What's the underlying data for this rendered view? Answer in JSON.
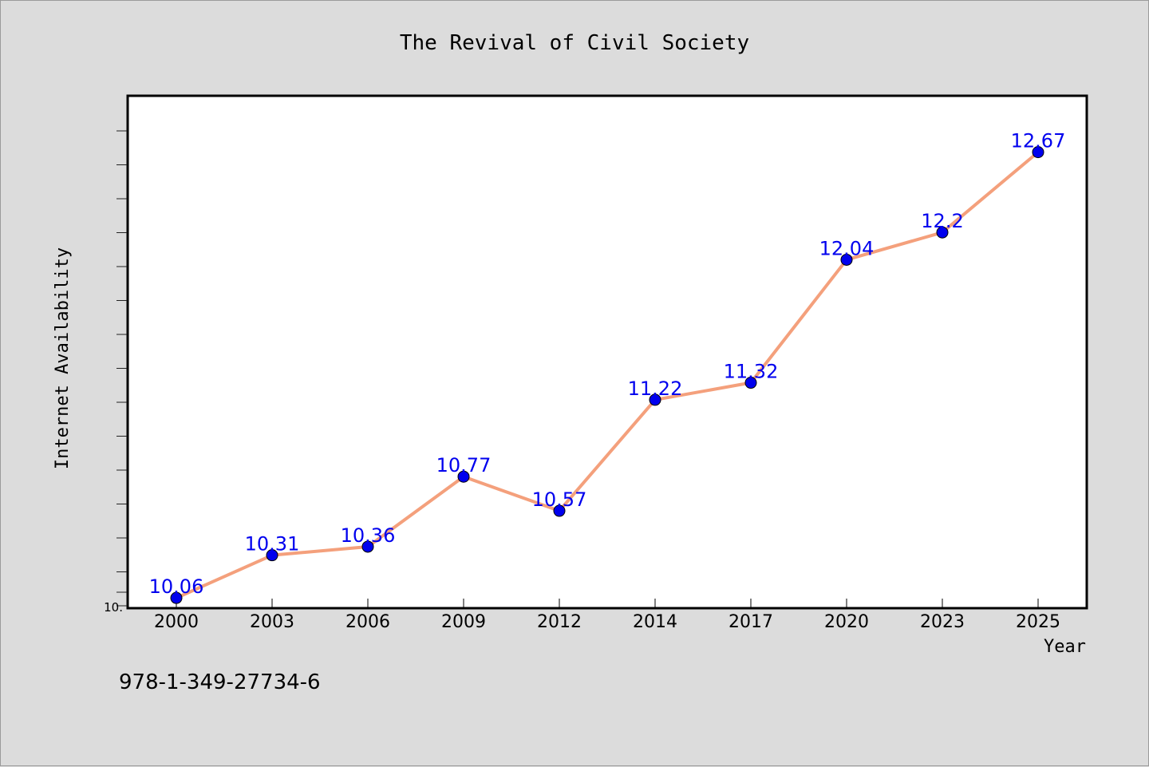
{
  "chart_data": {
    "type": "line",
    "title": "The Revival of Civil Society",
    "xlabel": "Year",
    "ylabel": "Internet Availability",
    "categories": [
      "2000",
      "2003",
      "2006",
      "2009",
      "2012",
      "2014",
      "2017",
      "2020",
      "2023",
      "2025"
    ],
    "series": [
      {
        "values": [
          10.06,
          10.31,
          10.36,
          10.77,
          10.57,
          11.22,
          11.32,
          12.04,
          12.2,
          12.67
        ]
      }
    ],
    "data_labels": [
      "10.06",
      "10.31",
      "10.36",
      "10.77",
      "10.57",
      "11.22",
      "11.32",
      "12.04",
      "12.2",
      "12.67"
    ],
    "ylim": [
      10.0,
      13.0
    ],
    "ytick_label": "10.",
    "grid": false,
    "line_color": "#f4a07c",
    "marker_color": "#0000ee",
    "label_color": "#0000ee",
    "background_color": "#dcdcdc",
    "plot_background": "#ffffff"
  },
  "footer": {
    "code": "978-1-349-27734-6"
  }
}
